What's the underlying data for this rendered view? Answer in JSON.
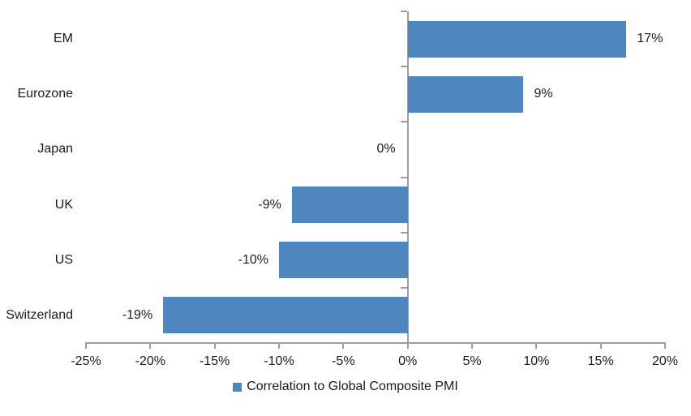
{
  "chart_data": {
    "type": "bar",
    "orientation": "horizontal",
    "title": "",
    "xlabel": "",
    "ylabel": "",
    "categories": [
      "EM",
      "Eurozone",
      "Japan",
      "UK",
      "US",
      "Switzerland"
    ],
    "values": [
      17,
      9,
      0,
      -9,
      -10,
      -19
    ],
    "value_labels": [
      "17%",
      "9%",
      "0%",
      "-9%",
      "-10%",
      "-19%"
    ],
    "series": [
      {
        "name": "Correlation to Global Composite PMI",
        "values": [
          17,
          9,
          0,
          -9,
          -10,
          -19
        ]
      }
    ],
    "xlim": [
      -25,
      20
    ],
    "x_ticks": [
      {
        "value": -25,
        "label": "-25%"
      },
      {
        "value": -20,
        "label": "-20%"
      },
      {
        "value": -15,
        "label": "-15%"
      },
      {
        "value": -10,
        "label": "-10%"
      },
      {
        "value": -5,
        "label": "-5%"
      },
      {
        "value": 0,
        "label": "0%"
      },
      {
        "value": 5,
        "label": "5%"
      },
      {
        "value": 10,
        "label": "10%"
      },
      {
        "value": 15,
        "label": "15%"
      },
      {
        "value": 20,
        "label": "20%"
      }
    ],
    "grid": false,
    "legend": {
      "position": "bottom-center",
      "entries": [
        {
          "label": "Correlation to Global Composite PMI",
          "color": "#4e86bd"
        }
      ]
    },
    "colors": {
      "bar": "#4e86bd",
      "axis": "#9e9e9e",
      "text": "#1a1a1a",
      "background": "#ffffff"
    }
  }
}
